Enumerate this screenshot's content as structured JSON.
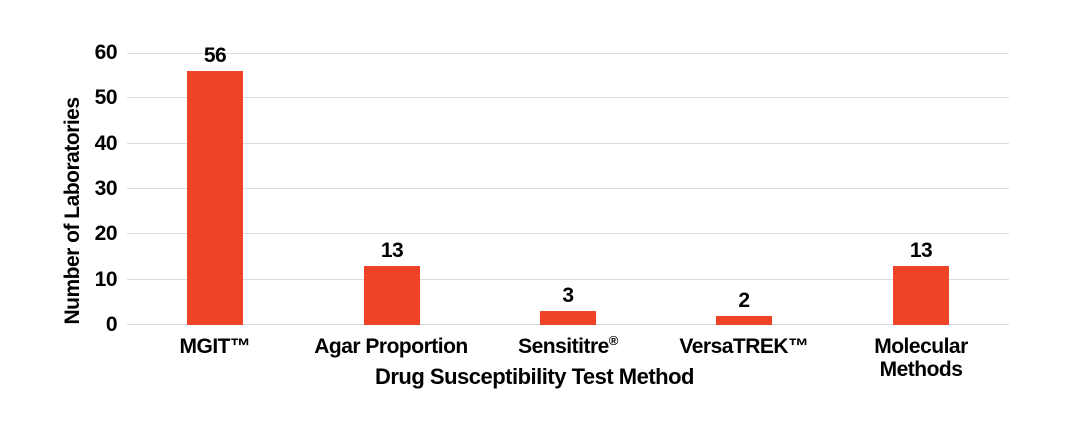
{
  "chart_data": {
    "type": "bar",
    "title": "",
    "categories": [
      "MGIT™",
      "Agar Proportion",
      "Sensititre®",
      "VersaTREK™",
      "Molecular Methods"
    ],
    "category_label_lines": [
      [
        "MGIT™"
      ],
      [
        "Agar Proportion"
      ],
      [
        "Sensititre®"
      ],
      [
        "VersaTREK™"
      ],
      [
        "Molecular",
        "Methods"
      ]
    ],
    "values": [
      56,
      13,
      3,
      2,
      13
    ],
    "value_labels": [
      "56",
      "13",
      "3",
      "2",
      "13"
    ],
    "xlabel": "Drug Susceptibility Test Method",
    "ylabel": "Number of Laboratories",
    "ylim": [
      0,
      60
    ],
    "yticks": [
      0,
      10,
      20,
      30,
      40,
      50,
      60
    ],
    "grid": "horizontal",
    "legend": "none",
    "colors": {
      "bar": "#ee4326",
      "gridline": "#dcdcdc",
      "text": "#000000",
      "background": "#ffffff"
    }
  }
}
